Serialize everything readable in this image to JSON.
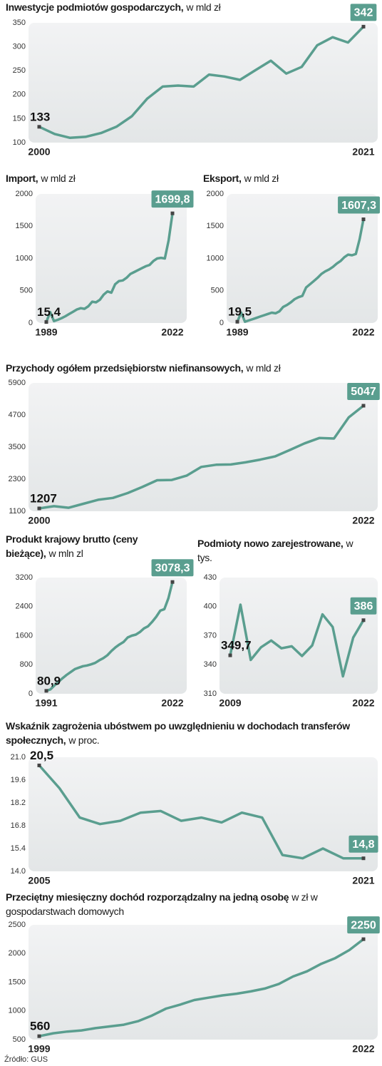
{
  "chart_data": [
    {
      "type": "line",
      "title": "Inwestycje podmiotów gospodarczych,",
      "subtitle": "w mld zł",
      "color": "#5a9e8f",
      "x": [
        2000,
        2001,
        2002,
        2003,
        2004,
        2005,
        2006,
        2007,
        2008,
        2009,
        2010,
        2011,
        2012,
        2013,
        2014,
        2015,
        2016,
        2017,
        2018,
        2019,
        2020,
        2021
      ],
      "values": [
        133,
        118,
        110,
        112,
        120,
        133,
        155,
        192,
        217,
        219,
        217,
        242,
        238,
        231,
        251,
        271,
        244,
        258,
        303,
        320,
        309,
        342
      ],
      "xlim": [
        2000,
        2021
      ],
      "xticks": [
        2000,
        2021
      ],
      "ylim": [
        100,
        350
      ],
      "yticks": [
        100,
        150,
        200,
        250,
        300,
        350
      ]
    },
    {
      "type": "line",
      "title": "Import,",
      "subtitle": "w mld zł",
      "color": "#5a9e8f",
      "x": [
        1989,
        1990,
        1991,
        1992,
        1993,
        1994,
        1995,
        1996,
        1997,
        1998,
        1999,
        2000,
        2001,
        2002,
        2003,
        2004,
        2005,
        2006,
        2007,
        2008,
        2009,
        2010,
        2011,
        2012,
        2013,
        2014,
        2015,
        2016,
        2017,
        2018,
        2019,
        2020,
        2021,
        2022
      ],
      "values": [
        15.4,
        170,
        30,
        50,
        75,
        105,
        140,
        175,
        210,
        230,
        220,
        260,
        330,
        320,
        360,
        440,
        490,
        470,
        600,
        650,
        660,
        700,
        760,
        790,
        820,
        850,
        880,
        900,
        960,
        1000,
        1010,
        1000,
        1280,
        1699.8
      ],
      "value_labels": [
        "15,4",
        null,
        null,
        null,
        null,
        null,
        null,
        null,
        null,
        null,
        null,
        null,
        null,
        null,
        null,
        null,
        null,
        null,
        null,
        null,
        null,
        null,
        null,
        null,
        null,
        null,
        null,
        null,
        null,
        null,
        null,
        null,
        null,
        "1699,8"
      ],
      "xlim": [
        1989,
        2022
      ],
      "xticks": [
        1989,
        2022
      ],
      "ylim": [
        0,
        2000
      ],
      "yticks": [
        0,
        500,
        1000,
        1500,
        2000
      ]
    },
    {
      "type": "line",
      "title": "Eksport,",
      "subtitle": "w mld zł",
      "color": "#5a9e8f",
      "x": [
        1989,
        1990,
        1991,
        1992,
        1993,
        1994,
        1995,
        1996,
        1997,
        1998,
        1999,
        2000,
        2001,
        2002,
        2003,
        2004,
        2005,
        2006,
        2007,
        2008,
        2009,
        2010,
        2011,
        2012,
        2013,
        2014,
        2015,
        2016,
        2017,
        2018,
        2019,
        2020,
        2021,
        2022
      ],
      "values": [
        19.5,
        160,
        20,
        40,
        60,
        80,
        100,
        120,
        140,
        160,
        150,
        180,
        250,
        280,
        320,
        370,
        400,
        420,
        550,
        600,
        650,
        700,
        760,
        800,
        830,
        870,
        920,
        960,
        1020,
        1060,
        1050,
        1070,
        1300,
        1607.3
      ],
      "value_labels": [
        "19,5",
        null,
        null,
        null,
        null,
        null,
        null,
        null,
        null,
        null,
        null,
        null,
        null,
        null,
        null,
        null,
        null,
        null,
        null,
        null,
        null,
        null,
        null,
        null,
        null,
        null,
        null,
        null,
        null,
        null,
        null,
        null,
        null,
        "1607,3"
      ],
      "xlim": [
        1989,
        2022
      ],
      "xticks": [
        1989,
        2022
      ],
      "ylim": [
        0,
        2000
      ],
      "yticks": [
        0,
        500,
        1000,
        1500,
        2000
      ]
    },
    {
      "type": "line",
      "title": "Przychody ogółem przedsiębiorstw niefinansowych,",
      "subtitle": "w mld zł",
      "color": "#5a9e8f",
      "x": [
        2000,
        2001,
        2002,
        2003,
        2004,
        2005,
        2006,
        2007,
        2008,
        2009,
        2010,
        2011,
        2012,
        2013,
        2014,
        2015,
        2016,
        2017,
        2018,
        2019,
        2020,
        2021,
        2022
      ],
      "values": [
        1207,
        1290,
        1230,
        1380,
        1530,
        1600,
        1780,
        2010,
        2260,
        2270,
        2430,
        2760,
        2840,
        2850,
        2930,
        3030,
        3150,
        3390,
        3640,
        3840,
        3820,
        4610,
        5047
      ],
      "xlim": [
        2000,
        2022
      ],
      "xticks": [
        2000,
        2022
      ],
      "ylim": [
        1100,
        5900
      ],
      "yticks": [
        1100,
        2300,
        3500,
        4700,
        5900
      ]
    },
    {
      "type": "line",
      "title": "Produkt krajowy brutto (ceny bieżące),",
      "subtitle": "w mln zl",
      "color": "#5a9e8f",
      "x": [
        1991,
        1992,
        1993,
        1994,
        1995,
        1996,
        1997,
        1998,
        1999,
        2000,
        2001,
        2002,
        2003,
        2004,
        2005,
        2006,
        2007,
        2008,
        2009,
        2010,
        2011,
        2012,
        2013,
        2014,
        2015,
        2016,
        2017,
        2018,
        2019,
        2020,
        2021,
        2022
      ],
      "values": [
        80.9,
        120,
        230,
        330,
        430,
        520,
        600,
        680,
        720,
        760,
        780,
        810,
        850,
        920,
        980,
        1060,
        1180,
        1280,
        1360,
        1430,
        1550,
        1600,
        1630,
        1700,
        1800,
        1860,
        1980,
        2120,
        2290,
        2330,
        2630,
        3078.3
      ],
      "value_labels": [
        "80,9",
        null,
        null,
        null,
        null,
        null,
        null,
        null,
        null,
        null,
        null,
        null,
        null,
        null,
        null,
        null,
        null,
        null,
        null,
        null,
        null,
        null,
        null,
        null,
        null,
        null,
        null,
        null,
        null,
        null,
        null,
        "3078,3"
      ],
      "xlim": [
        1991,
        2022
      ],
      "xticks": [
        1991,
        2022
      ],
      "ylim": [
        0,
        3200
      ],
      "yticks": [
        0,
        800,
        1600,
        2400,
        3200
      ]
    },
    {
      "type": "line",
      "title": "Podmioty nowo zarejestrowane,",
      "subtitle": "w tys.",
      "color": "#5a9e8f",
      "x": [
        2009,
        2010,
        2011,
        2012,
        2013,
        2014,
        2015,
        2016,
        2017,
        2018,
        2019,
        2020,
        2021,
        2022
      ],
      "values": [
        349.7,
        402,
        345,
        358,
        365,
        357,
        359,
        349,
        360,
        392,
        379,
        328,
        368,
        386
      ],
      "value_labels": [
        "349,7",
        null,
        null,
        null,
        null,
        null,
        null,
        null,
        null,
        null,
        null,
        null,
        null,
        null
      ],
      "xlim": [
        2009,
        2022
      ],
      "xticks": [
        2009,
        2022
      ],
      "ylim": [
        310,
        430
      ],
      "yticks": [
        310,
        340,
        370,
        400,
        430
      ]
    },
    {
      "type": "line",
      "title": "Wskaźnik zagrożenia ubóstwem po uwzględnieniu w dochodach transferów społecznych,",
      "subtitle": "w proc.",
      "color": "#5a9e8f",
      "x": [
        2005,
        2006,
        2007,
        2008,
        2009,
        2010,
        2011,
        2012,
        2013,
        2014,
        2015,
        2016,
        2017,
        2018,
        2019,
        2020,
        2021
      ],
      "values": [
        20.5,
        19.1,
        17.3,
        16.9,
        17.1,
        17.6,
        17.7,
        17.1,
        17.3,
        17.0,
        17.6,
        17.3,
        15.0,
        14.8,
        15.4,
        14.8,
        14.8
      ],
      "value_labels": [
        "20,5",
        null,
        null,
        null,
        null,
        null,
        null,
        null,
        null,
        null,
        null,
        null,
        null,
        null,
        null,
        null,
        "14,8"
      ],
      "xlim": [
        2005,
        2021
      ],
      "xticks": [
        2005,
        2021
      ],
      "ylim": [
        14,
        21
      ],
      "yticks": [
        {
          "value": 14,
          "label": "14.0"
        },
        15.4,
        16.8,
        18.2,
        19.6,
        {
          "value": 21,
          "label": "21.0"
        }
      ]
    },
    {
      "type": "line",
      "title": "Przeciętny miesięczny dochód rozporządzalny na jedną osobę",
      "subtitle": "w zł w gospodarstwach domowych",
      "color": "#5a9e8f",
      "x": [
        1999,
        2000,
        2001,
        2002,
        2003,
        2004,
        2005,
        2006,
        2007,
        2008,
        2009,
        2010,
        2011,
        2012,
        2013,
        2014,
        2015,
        2016,
        2017,
        2018,
        2019,
        2020,
        2021,
        2022
      ],
      "values": [
        560,
        610,
        640,
        660,
        700,
        730,
        760,
        820,
        920,
        1040,
        1110,
        1190,
        1230,
        1270,
        1300,
        1340,
        1390,
        1470,
        1600,
        1690,
        1820,
        1920,
        2060,
        2250
      ],
      "xlim": [
        1999,
        2022
      ],
      "xticks": [
        1999,
        2022
      ],
      "ylim": [
        500,
        2500
      ],
      "yticks": [
        500,
        1000,
        1500,
        2000,
        2500
      ]
    }
  ],
  "source": "Źródło: GUS"
}
